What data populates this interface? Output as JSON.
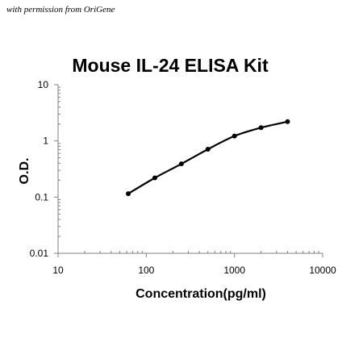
{
  "credit": "with permission from OriGene",
  "colors": {
    "axis": "#808080",
    "line": "#000000",
    "background": "#ffffff"
  },
  "chart_data": {
    "type": "line",
    "title": "Mouse IL-24 ELISA Kit",
    "xlabel": "Concentration(pg/ml)",
    "ylabel": "O.D.",
    "x_scale": "log",
    "y_scale": "log",
    "xlim": [
      10,
      10000
    ],
    "ylim": [
      0.01,
      10
    ],
    "x_ticks": [
      "10",
      "100",
      "1000",
      "10000"
    ],
    "y_ticks": [
      "10",
      "1",
      "0.1",
      "0.01"
    ],
    "grid": false,
    "legend": "none",
    "x": [
      62.5,
      125,
      250,
      500,
      1000,
      2000,
      4000
    ],
    "series": [
      {
        "values": [
          0.115,
          0.22,
          0.39,
          0.71,
          1.22,
          1.72,
          2.2
        ]
      }
    ]
  }
}
